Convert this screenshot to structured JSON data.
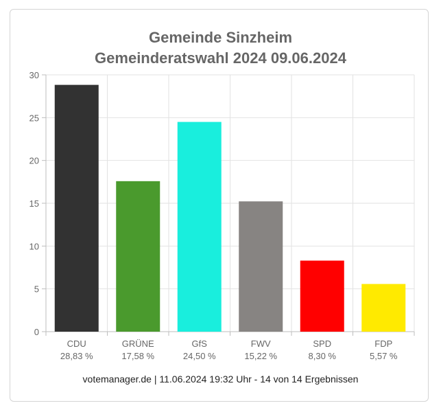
{
  "chart_data": {
    "type": "bar",
    "title": "Gemeinde Sinzheim",
    "subtitle": "Gemeinderatswahl 2024 09.06.2024",
    "categories": [
      "CDU",
      "GRÜNE",
      "GfS",
      "FWV",
      "SPD",
      "FDP"
    ],
    "value_labels": [
      "28,83 %",
      "17,58 %",
      "24,50 %",
      "15,22 %",
      "8,30 %",
      "5,57 %"
    ],
    "values": [
      28.83,
      17.58,
      24.5,
      15.22,
      8.3,
      5.57
    ],
    "colors": [
      "#323232",
      "#4a9a2d",
      "#19eedd",
      "#878482",
      "#ff0000",
      "#ffea00"
    ],
    "ylim": [
      0,
      30
    ],
    "yticks": [
      0,
      5,
      10,
      15,
      20,
      25,
      30
    ],
    "grid": true,
    "xlabel": "",
    "ylabel": ""
  },
  "footer": "votemanager.de | 11.06.2024 19:32 Uhr - 14 von 14 Ergebnissen"
}
